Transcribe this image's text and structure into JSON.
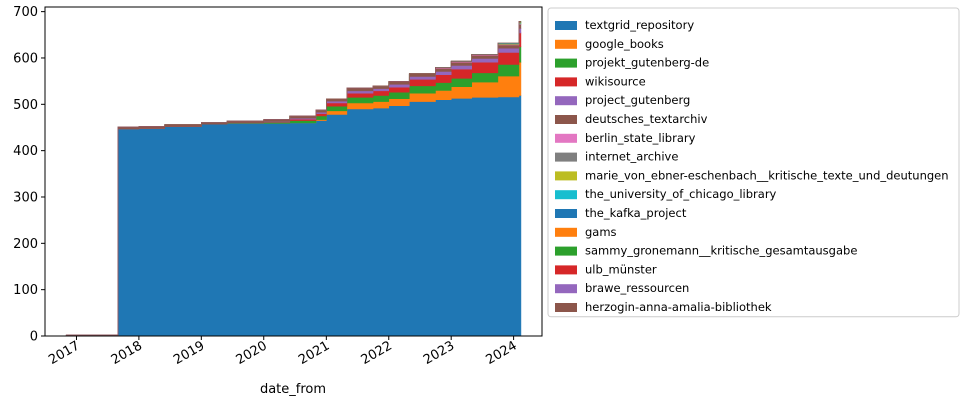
{
  "chart_data": {
    "type": "area",
    "stacked": true,
    "step": true,
    "xlabel": "date_from",
    "ylabel": "",
    "title": "",
    "ylim": [
      0,
      710
    ],
    "xlim": [
      "2016-07-01",
      "2024-06-15"
    ],
    "yticks": [
      0,
      100,
      200,
      300,
      400,
      500,
      600,
      700
    ],
    "xticks": [
      {
        "date": "2017-01-01",
        "label": "2017"
      },
      {
        "date": "2018-01-01",
        "label": "2018"
      },
      {
        "date": "2019-01-01",
        "label": "2019"
      },
      {
        "date": "2020-01-01",
        "label": "2020"
      },
      {
        "date": "2021-01-01",
        "label": "2021"
      },
      {
        "date": "2022-01-01",
        "label": "2022"
      },
      {
        "date": "2023-01-01",
        "label": "2023"
      },
      {
        "date": "2024-01-01",
        "label": "2024"
      }
    ],
    "legend_position": "outside-right",
    "x": [
      "2016-11-01",
      "2017-09-01",
      "2018-01-01",
      "2018-06-01",
      "2019-01-01",
      "2019-06-01",
      "2020-01-01",
      "2020-06-01",
      "2020-11-01",
      "2021-01-01",
      "2021-05-01",
      "2021-10-01",
      "2022-01-01",
      "2022-05-01",
      "2022-10-01",
      "2023-01-01",
      "2023-05-01",
      "2023-10-01",
      "2024-02-01"
    ],
    "series": [
      {
        "name": "textgrid_repository",
        "color": "#1f77b4",
        "values": [
          0,
          447,
          448,
          452,
          457,
          459,
          459,
          460,
          465,
          478,
          490,
          492,
          497,
          506,
          510,
          513,
          515,
          516,
          519
        ]
      },
      {
        "name": "google_books",
        "color": "#ff7f0e",
        "values": [
          0,
          0,
          0,
          0,
          0,
          0,
          0,
          0,
          2,
          8,
          13,
          14,
          15,
          18,
          20,
          25,
          33,
          45,
          72
        ]
      },
      {
        "name": "projekt_gutenberg-de",
        "color": "#2ca02c",
        "values": [
          0,
          0,
          0,
          0,
          0,
          1,
          2,
          5,
          8,
          10,
          12,
          13,
          14,
          16,
          17,
          18,
          20,
          25,
          33
        ]
      },
      {
        "name": "wikisource",
        "color": "#d62728",
        "values": [
          0,
          0,
          0,
          0,
          0,
          0,
          1,
          3,
          5,
          7,
          9,
          10,
          11,
          14,
          17,
          20,
          23,
          26,
          30
        ]
      },
      {
        "name": "project_gutenberg",
        "color": "#9467bd",
        "values": [
          0,
          0,
          0,
          0,
          0,
          0,
          1,
          2,
          3,
          4,
          5,
          5,
          6,
          6,
          7,
          8,
          8,
          9,
          10
        ]
      },
      {
        "name": "deutsches_textarchiv",
        "color": "#8c564b",
        "values": [
          2,
          4,
          4,
          4,
          4,
          4,
          4,
          5,
          5,
          5,
          6,
          6,
          6,
          6,
          7,
          7,
          7,
          7,
          8
        ]
      },
      {
        "name": "berlin_state_library",
        "color": "#e377c2",
        "values": [
          0,
          0,
          0,
          0,
          0,
          0,
          0,
          0,
          0,
          0,
          0,
          0,
          0,
          0,
          1,
          1,
          1,
          1,
          1
        ]
      },
      {
        "name": "internet_archive",
        "color": "#7f7f7f",
        "values": [
          0,
          0,
          0,
          0,
          0,
          0,
          0,
          0,
          0,
          0,
          0,
          0,
          0,
          0,
          1,
          1,
          1,
          1,
          1
        ]
      },
      {
        "name": "marie_von_ebner-eschenbach__kritische_texte_und_deutungen",
        "color": "#bcbd22",
        "values": [
          0,
          0,
          0,
          0,
          0,
          0,
          0,
          0,
          0,
          0,
          0,
          0,
          0,
          0,
          0,
          0,
          0,
          1,
          1
        ]
      },
      {
        "name": "the_university_of_chicago_library",
        "color": "#17becf",
        "values": [
          0,
          0,
          0,
          0,
          0,
          0,
          0,
          0,
          0,
          0,
          0,
          0,
          0,
          0,
          0,
          0,
          0,
          1,
          1
        ]
      },
      {
        "name": "the_kafka_project",
        "color": "#1f77b4",
        "values": [
          0,
          0,
          0,
          0,
          0,
          0,
          0,
          0,
          0,
          0,
          0,
          0,
          0,
          0,
          0,
          0,
          0,
          0,
          1
        ]
      },
      {
        "name": "gams",
        "color": "#ff7f0e",
        "values": [
          0,
          0,
          0,
          0,
          0,
          0,
          0,
          0,
          0,
          0,
          0,
          0,
          0,
          0,
          0,
          0,
          0,
          0,
          1
        ]
      },
      {
        "name": "sammy_gronemann__kritische_gesamtausgabe",
        "color": "#2ca02c",
        "values": [
          0,
          0,
          0,
          0,
          0,
          0,
          0,
          0,
          0,
          0,
          0,
          0,
          0,
          0,
          0,
          0,
          0,
          0,
          1
        ]
      },
      {
        "name": "ulb_münster",
        "color": "#d62728",
        "values": [
          0,
          0,
          0,
          0,
          0,
          0,
          0,
          0,
          0,
          0,
          0,
          0,
          0,
          0,
          0,
          0,
          0,
          0,
          0
        ]
      },
      {
        "name": "brawe_ressourcen",
        "color": "#9467bd",
        "values": [
          0,
          0,
          0,
          0,
          0,
          0,
          0,
          0,
          0,
          0,
          0,
          0,
          0,
          0,
          0,
          0,
          0,
          0,
          0
        ]
      },
      {
        "name": "herzogin-anna-amalia-bibliothek",
        "color": "#8c564b",
        "values": [
          0,
          0,
          0,
          0,
          0,
          0,
          0,
          0,
          0,
          0,
          0,
          0,
          0,
          0,
          0,
          0,
          0,
          0,
          0
        ]
      }
    ]
  }
}
